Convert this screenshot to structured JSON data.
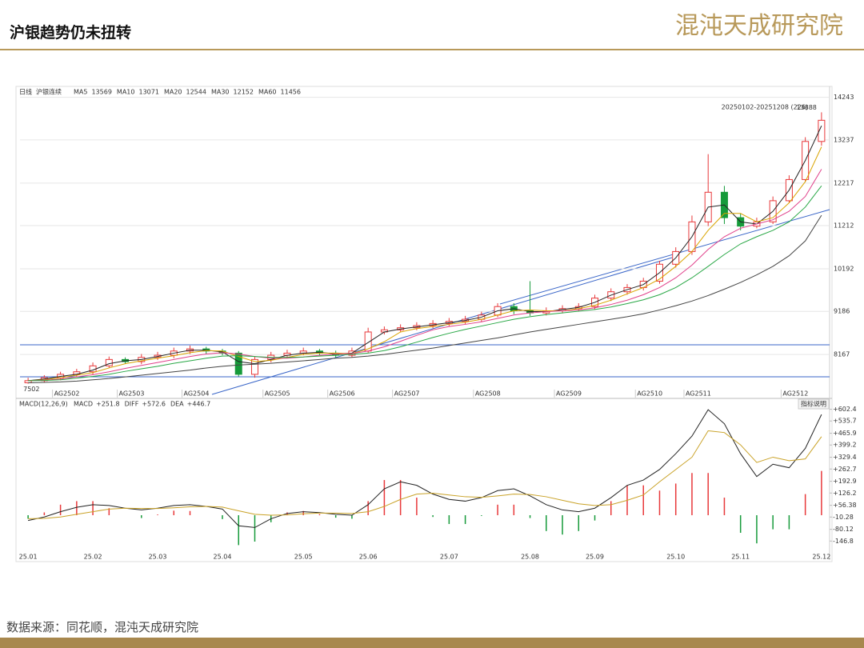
{
  "header": {
    "title": "沪银趋势仍未扭转",
    "logo": "混沌天成研究院"
  },
  "footer": {
    "source": "数据来源：同花顺，混沌天成研究院"
  },
  "chart_data": [
    {
      "type": "candlestick",
      "period": "日线",
      "name": "沪银连续",
      "range_label": "20250102-20251208 (226)",
      "high_label": "13888",
      "low_label": "7502",
      "up_color": "#e8383a",
      "down_color": "#169a3a",
      "categories": [
        null,
        null,
        "AG2502",
        null,
        null,
        null,
        "AG2503",
        null,
        null,
        null,
        "AG2504",
        null,
        null,
        null,
        null,
        "AG2505",
        null,
        null,
        null,
        "AG2506",
        null,
        null,
        null,
        "AG2507",
        null,
        null,
        null,
        null,
        "AG2508",
        null,
        null,
        null,
        null,
        "AG2509",
        null,
        null,
        null,
        null,
        "AG2510",
        null,
        null,
        "AG2511",
        null,
        null,
        null,
        null,
        null,
        "AG2512",
        null,
        null
      ],
      "open": [
        7500,
        7550,
        7620,
        7700,
        7760,
        7900,
        8050,
        8000,
        8100,
        8150,
        8250,
        8300,
        8250,
        8200,
        7700,
        8050,
        8150,
        8200,
        8250,
        8200,
        8150,
        8250,
        8700,
        8750,
        8800,
        8850,
        8900,
        8950,
        9000,
        9100,
        9300,
        9200,
        9150,
        9200,
        9250,
        9300,
        9500,
        9650,
        9750,
        9900,
        10300,
        10600,
        11300,
        12000,
        11400,
        11200,
        11300,
        11800,
        12300,
        13200
      ],
      "high": [
        7620,
        7680,
        7760,
        7830,
        7980,
        8120,
        8100,
        8180,
        8230,
        8330,
        8380,
        8350,
        8300,
        8250,
        8120,
        8230,
        8280,
        8330,
        8300,
        8260,
        8330,
        8800,
        8830,
        8880,
        8930,
        8980,
        9030,
        9080,
        9180,
        9380,
        9380,
        9900,
        9280,
        9330,
        9380,
        9580,
        9730,
        9830,
        9980,
        10380,
        10700,
        11450,
        12900,
        12150,
        11500,
        11400,
        11900,
        12400,
        13300,
        13888
      ],
      "low": [
        7480,
        7502,
        7560,
        7640,
        7700,
        7850,
        7950,
        7940,
        8040,
        8080,
        8180,
        8180,
        8150,
        7650,
        7620,
        7980,
        8080,
        8150,
        8150,
        8090,
        8100,
        8200,
        8640,
        8690,
        8740,
        8790,
        8840,
        8880,
        8930,
        9050,
        9120,
        9080,
        9090,
        9140,
        9190,
        9240,
        9430,
        9580,
        9680,
        9840,
        10220,
        10520,
        11200,
        11250,
        11100,
        11150,
        11250,
        11750,
        12250,
        13100
      ],
      "close": [
        7550,
        7620,
        7700,
        7760,
        7900,
        8050,
        8000,
        8100,
        8150,
        8250,
        8300,
        8250,
        8200,
        7700,
        8050,
        8150,
        8200,
        8250,
        8200,
        8150,
        8250,
        8700,
        8750,
        8800,
        8850,
        8900,
        8950,
        9000,
        9100,
        9300,
        9200,
        9150,
        9200,
        9250,
        9300,
        9500,
        9650,
        9750,
        9900,
        10300,
        10600,
        11300,
        12000,
        11400,
        11200,
        11300,
        11800,
        12300,
        13200,
        13700
      ],
      "series": [
        {
          "name": "MA5",
          "color": "#222222",
          "values": [
            7550,
            7590,
            7650,
            7700,
            7800,
            7950,
            8020,
            8050,
            8120,
            8200,
            8270,
            8270,
            8230,
            8000,
            7950,
            8050,
            8150,
            8200,
            8220,
            8180,
            8200,
            8450,
            8700,
            8770,
            8820,
            8870,
            8920,
            8970,
            9050,
            9200,
            9250,
            9180,
            9180,
            9230,
            9280,
            9400,
            9570,
            9700,
            9820,
            10100,
            10450,
            10950,
            11650,
            11700,
            11300,
            11250,
            11550,
            12050,
            12750,
            13569
          ]
        },
        {
          "name": "MA10",
          "color": "#d9a400",
          "values": [
            7550,
            7570,
            7620,
            7680,
            7740,
            7850,
            7950,
            8020,
            8080,
            8140,
            8210,
            8260,
            8250,
            8120,
            8000,
            8030,
            8100,
            8170,
            8200,
            8200,
            8190,
            8300,
            8470,
            8700,
            8780,
            8830,
            8880,
            8930,
            9000,
            9100,
            9200,
            9220,
            9200,
            9200,
            9250,
            9330,
            9450,
            9600,
            9750,
            9950,
            10250,
            10600,
            11100,
            11500,
            11500,
            11300,
            11400,
            11750,
            12250,
            13071
          ]
        },
        {
          "name": "MA20",
          "color": "#e0408a",
          "values": [
            7550,
            7560,
            7590,
            7640,
            7690,
            7760,
            7840,
            7910,
            7980,
            8050,
            8120,
            8180,
            8210,
            8180,
            8120,
            8080,
            8080,
            8110,
            8150,
            8180,
            8190,
            8250,
            8350,
            8480,
            8620,
            8750,
            8830,
            8880,
            8940,
            9020,
            9100,
            9150,
            9180,
            9200,
            9220,
            9270,
            9350,
            9450,
            9580,
            9750,
            9980,
            10280,
            10650,
            10950,
            11150,
            11250,
            11350,
            11550,
            11900,
            12544
          ]
        },
        {
          "name": "MA30",
          "color": "#28a745",
          "values": [
            7550,
            7555,
            7570,
            7610,
            7650,
            7700,
            7770,
            7830,
            7890,
            7960,
            8020,
            8080,
            8130,
            8140,
            8120,
            8100,
            8100,
            8110,
            8130,
            8150,
            8170,
            8200,
            8260,
            8350,
            8460,
            8570,
            8670,
            8760,
            8840,
            8920,
            9000,
            9060,
            9110,
            9150,
            9190,
            9230,
            9290,
            9370,
            9460,
            9580,
            9750,
            9980,
            10250,
            10530,
            10780,
            10950,
            11100,
            11300,
            11650,
            12152
          ]
        },
        {
          "name": "MA60",
          "color": "#444444",
          "values": [
            7500,
            7510,
            7520,
            7540,
            7570,
            7600,
            7640,
            7680,
            7720,
            7760,
            7800,
            7850,
            7890,
            7920,
            7940,
            7960,
            7990,
            8020,
            8050,
            8080,
            8100,
            8130,
            8170,
            8220,
            8270,
            8320,
            8380,
            8440,
            8500,
            8560,
            8630,
            8700,
            8760,
            8820,
            8880,
            8940,
            9000,
            9060,
            9130,
            9220,
            9320,
            9430,
            9560,
            9710,
            9870,
            10050,
            10250,
            10500,
            10850,
            11456
          ]
        }
      ],
      "ylim": [
        7150,
        14500
      ],
      "yticks": [
        8167,
        9186,
        10192,
        11212,
        12217,
        13237,
        14243
      ],
      "grid": true
    },
    {
      "type": "macd",
      "title": "MACD(12,26,9)",
      "button": "指标说明",
      "categories": [
        "25.01",
        null,
        null,
        null,
        "25.02",
        null,
        null,
        null,
        "25.03",
        null,
        null,
        null,
        "25.04",
        null,
        null,
        null,
        null,
        "25.05",
        null,
        null,
        null,
        "25.06",
        null,
        null,
        null,
        null,
        "25.07",
        null,
        null,
        null,
        null,
        "25.08",
        null,
        null,
        null,
        "25.09",
        null,
        null,
        null,
        null,
        "25.10",
        null,
        null,
        null,
        "25.11",
        null,
        null,
        null,
        null,
        "25.12"
      ],
      "series": [
        {
          "name": "MACD",
          "color": "#e8383a",
          "neg_color": "#169a3a",
          "value_label": "+251.8",
          "values": [
            -20,
            16,
            60,
            80,
            80,
            40,
            0,
            -16,
            4,
            26,
            24,
            0,
            -22,
            -170,
            -150,
            -40,
            16,
            24,
            6,
            -14,
            -20,
            80,
            200,
            200,
            100,
            -10,
            -50,
            -50,
            -4,
            60,
            60,
            -16,
            -90,
            -110,
            -90,
            -30,
            80,
            170,
            170,
            140,
            180,
            240,
            240,
            100,
            -100,
            -160,
            -80,
            -80,
            120,
            251.8
          ]
        },
        {
          "name": "DIFF",
          "color": "#222222",
          "value_label": "+572.6",
          "values": [
            -30,
            -10,
            20,
            45,
            60,
            55,
            40,
            30,
            40,
            55,
            60,
            50,
            35,
            -60,
            -70,
            -20,
            10,
            20,
            15,
            5,
            0,
            60,
            150,
            190,
            170,
            120,
            90,
            80,
            100,
            140,
            150,
            110,
            60,
            30,
            20,
            40,
            100,
            170,
            200,
            260,
            350,
            450,
            600,
            520,
            350,
            220,
            290,
            270,
            380,
            572.6
          ]
        },
        {
          "name": "DEA",
          "color": "#c9a227",
          "value_label": "+446.7",
          "values": [
            -20,
            -18,
            -10,
            5,
            20,
            35,
            40,
            38,
            38,
            42,
            48,
            50,
            46,
            25,
            5,
            0,
            2,
            8,
            12,
            12,
            10,
            20,
            50,
            90,
            120,
            125,
            115,
            105,
            102,
            110,
            120,
            118,
            105,
            85,
            65,
            55,
            60,
            85,
            115,
            190,
            260,
            330,
            480,
            470,
            400,
            300,
            330,
            310,
            320,
            446.7
          ]
        }
      ],
      "ylim": [
        -200,
        655
      ],
      "yticks": [
        {
          "value": 602.4,
          "label": "+602.4"
        },
        {
          "value": 535.7,
          "label": "+535.7"
        },
        {
          "value": 465.9,
          "label": "+465.9"
        },
        {
          "value": 399.2,
          "label": "+399.2"
        },
        {
          "value": 329.4,
          "label": "+329.4"
        },
        {
          "value": 262.7,
          "label": "+262.7"
        },
        {
          "value": 192.9,
          "label": "+192.9"
        },
        {
          "value": 126.2,
          "label": "+126.2"
        },
        {
          "value": 56.38,
          "label": "+56.38"
        },
        -10.28,
        -80.12,
        -146.8
      ]
    }
  ]
}
